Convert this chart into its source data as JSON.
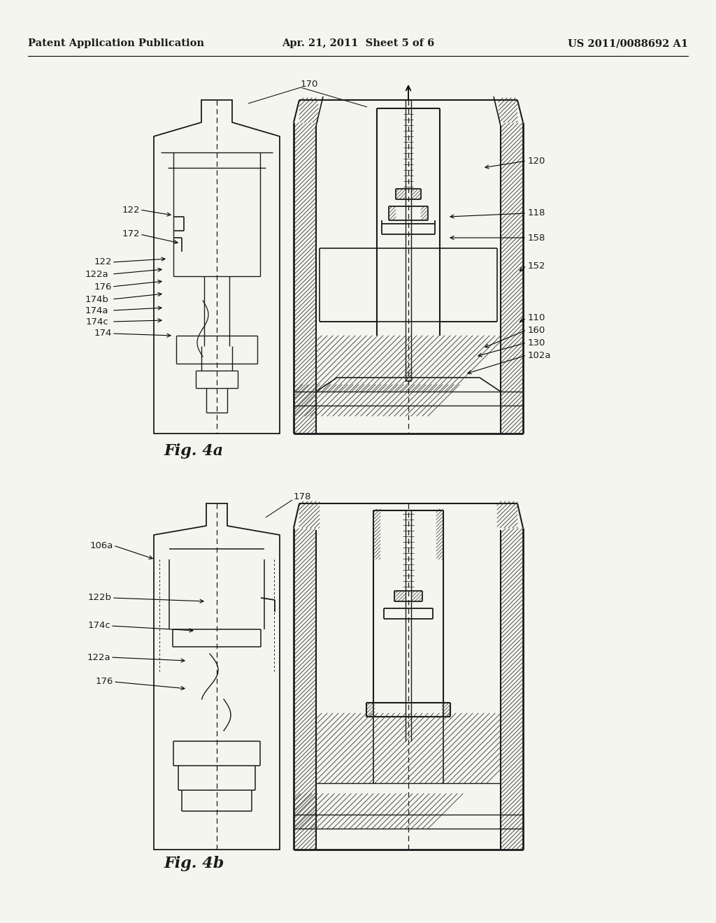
{
  "background_color": "#f5f5f0",
  "header": {
    "left": "Patent Application Publication",
    "center": "Apr. 21, 2011  Sheet 5 of 6",
    "right": "US 2011/0088692 A1",
    "fontsize": 10.5
  },
  "fig4a_caption": "Fig. 4a",
  "fig4b_caption": "Fig. 4b",
  "text_color": "#1a1a1a"
}
